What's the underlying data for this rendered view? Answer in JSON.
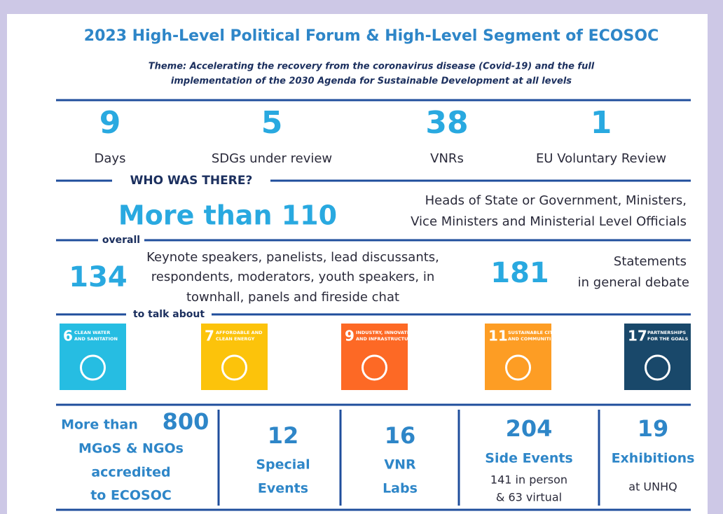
{
  "title": "2023 High-Level Political Forum & High-Level Segment of ECOSOC",
  "theme": [
    "Theme: Accelerating the recovery from the coronavirus disease (Covid-19) and the full",
    "implementation of the 2030 Agenda for Sustainable Development at all levels"
  ],
  "stats": [
    {
      "value": 9,
      "label": "Days"
    },
    {
      "value": 5,
      "label": "SDGs under review"
    },
    {
      "value": 38,
      "label": "VNRs"
    },
    {
      "value": 1,
      "label": "EU Voluntary Review"
    }
  ],
  "sections": [
    "WHO WAS THERE?",
    "overall",
    "to talk about"
  ],
  "heads": {
    "value": "More than 110",
    "lines": [
      "Heads of State or Government, Ministers,",
      "Vice Ministers and Ministerial Level Officials"
    ]
  },
  "speakers": {
    "value": 134,
    "lines": [
      "Keynote speakers, panelists, lead discussants,",
      "respondents, moderators, youth speakers, in",
      "townhall,  panels and fireside chat"
    ]
  },
  "statements": {
    "value": 181,
    "lines": [
      "Statements",
      "in general debate"
    ]
  },
  "sdgs": [
    {
      "number": 6,
      "lines": [
        "CLEAN WATER",
        "AND SANITATION"
      ],
      "color": "#26bde2"
    },
    {
      "number": 7,
      "lines": [
        "AFFORDABLE AND",
        "CLEAN ENERGY"
      ],
      "color": "#fcc30b"
    },
    {
      "number": 9,
      "lines": [
        "INDUSTRY, INNOVATION",
        "AND INFRASTRUCTURE"
      ],
      "color": "#fd6925"
    },
    {
      "number": 11,
      "lines": [
        "SUSTAINABLE CITIES",
        "AND COMMUNITIES"
      ],
      "color": "#fd9d24"
    },
    {
      "number": 17,
      "lines": [
        "PARTNERSHIPS",
        "FOR THE GOALS"
      ],
      "color": "#19486a"
    }
  ],
  "boxes": [
    {
      "prefix": "More than",
      "value": 800,
      "lines": [
        "MGoS & NGOs",
        "accredited",
        "to ECOSOC"
      ]
    },
    {
      "value": 12,
      "lines": [
        "Special",
        "Events"
      ]
    },
    {
      "value": 16,
      "lines": [
        "VNR",
        "Labs"
      ]
    },
    {
      "value": 204,
      "lines": [
        "Side Events"
      ],
      "notes": [
        "141 in person",
        "& 63 virtual"
      ]
    },
    {
      "value": 19,
      "lines": [
        "Exhibitions"
      ],
      "notes": [
        "at UNHQ"
      ]
    }
  ]
}
